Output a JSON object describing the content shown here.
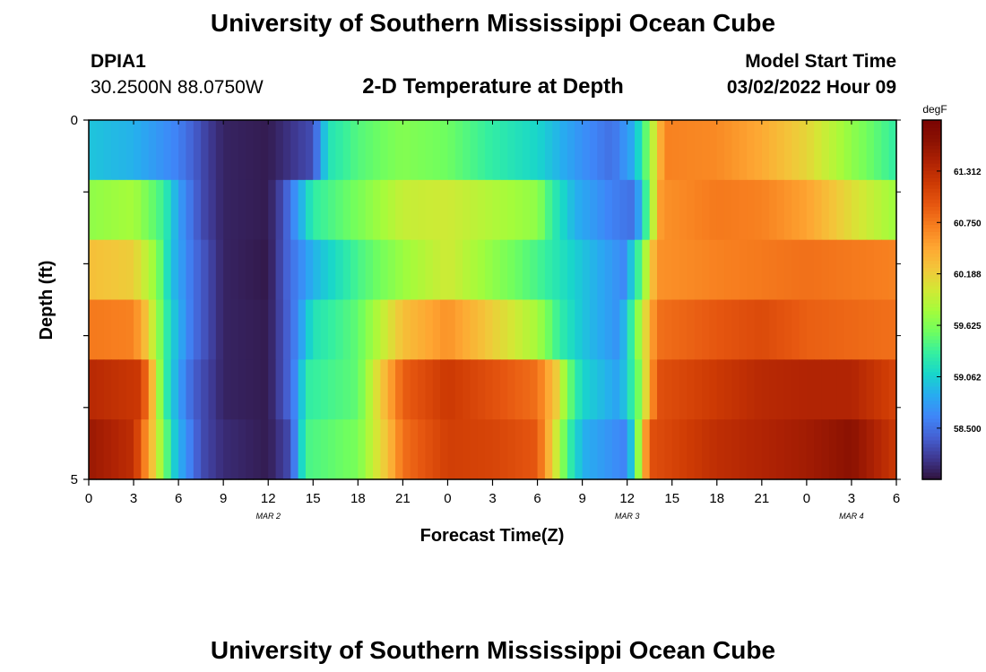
{
  "page": {
    "title": "University of Southern Mississippi Ocean Cube",
    "bottom_title": "University of Southern Mississippi Ocean Cube"
  },
  "station": {
    "id": "DPIA1",
    "coords": "30.2500N  88.0750W"
  },
  "model": {
    "label": "Model Start Time",
    "time": "03/02/2022 Hour 09"
  },
  "chart_data": {
    "type": "heatmap",
    "title": "2-D Temperature at Depth",
    "xlabel": "Forecast Time(Z)",
    "ylabel": "Depth (ft)",
    "x_tick_labels": [
      "0",
      "3",
      "6",
      "9",
      "12",
      "15",
      "18",
      "21",
      "0",
      "3",
      "6",
      "9",
      "12",
      "15",
      "18",
      "21",
      "0",
      "3",
      "6"
    ],
    "x_tick_hours": [
      0,
      3,
      6,
      9,
      12,
      15,
      18,
      21,
      24,
      27,
      30,
      33,
      36,
      39,
      42,
      45,
      48,
      51,
      54
    ],
    "x_range_hours": [
      0,
      54
    ],
    "date_labels": [
      {
        "text": "MAR 2",
        "hour": 12
      },
      {
        "text": "MAR 3",
        "hour": 36
      },
      {
        "text": "MAR 4",
        "hour": 51
      }
    ],
    "y_tick_labels": [
      "0",
      "5"
    ],
    "y_range": [
      0,
      5
    ],
    "depth_layers": [
      0,
      1,
      2,
      3,
      4,
      5
    ],
    "colorbar": {
      "unit": "degF",
      "ticks": [
        "61.312",
        "60.750",
        "60.188",
        "59.625",
        "59.062",
        "58.500"
      ],
      "tick_values": [
        61.312,
        60.75,
        60.188,
        59.625,
        59.062,
        58.5
      ],
      "min": 57.94,
      "max": 61.87,
      "colors": [
        "#30123b",
        "#3e378f",
        "#4560d2",
        "#3f86f8",
        "#28abf0",
        "#18d6cb",
        "#35efa0",
        "#6ffe5f",
        "#a4fc3b",
        "#d3e835",
        "#f3c63a",
        "#fea632",
        "#f77f1f",
        "#e65710",
        "#ce3b04",
        "#b02304",
        "#8c1202",
        "#7a0403"
      ]
    },
    "columns_per_hour": 2,
    "layer_keypoints": [
      [
        [
          0,
          59.0
        ],
        [
          3,
          58.9
        ],
        [
          6,
          58.6
        ],
        [
          8,
          58.2
        ],
        [
          9,
          58.05
        ],
        [
          12,
          58.0
        ],
        [
          15,
          58.3
        ],
        [
          16,
          59.2
        ],
        [
          18,
          59.45
        ],
        [
          21,
          59.65
        ],
        [
          24,
          59.55
        ],
        [
          27,
          59.3
        ],
        [
          30,
          59.1
        ],
        [
          33,
          58.7
        ],
        [
          35,
          58.5
        ],
        [
          36.5,
          58.9
        ],
        [
          37.5,
          59.7
        ],
        [
          38.5,
          60.7
        ],
        [
          42,
          60.65
        ],
        [
          45,
          60.45
        ],
        [
          48,
          60.15
        ],
        [
          51,
          59.7
        ],
        [
          54,
          59.3
        ]
      ],
      [
        [
          0,
          59.7
        ],
        [
          3,
          59.8
        ],
        [
          5,
          59.35
        ],
        [
          6,
          58.8
        ],
        [
          7.5,
          58.3
        ],
        [
          9,
          58.05
        ],
        [
          12,
          58.0
        ],
        [
          13,
          58.3
        ],
        [
          15,
          59.3
        ],
        [
          18,
          59.6
        ],
        [
          21,
          59.95
        ],
        [
          24,
          60.0
        ],
        [
          27,
          59.85
        ],
        [
          30,
          59.7
        ],
        [
          31,
          59.3
        ],
        [
          32.5,
          58.9
        ],
        [
          35,
          58.6
        ],
        [
          36.5,
          58.5
        ],
        [
          37.3,
          59.4
        ],
        [
          38.3,
          60.6
        ],
        [
          42,
          60.75
        ],
        [
          45,
          60.7
        ],
        [
          48,
          60.5
        ],
        [
          51,
          60.1
        ],
        [
          54,
          59.75
        ]
      ],
      [
        [
          0,
          60.3
        ],
        [
          3,
          60.2
        ],
        [
          4.5,
          59.7
        ],
        [
          5.5,
          59.0
        ],
        [
          7,
          58.5
        ],
        [
          9,
          58.05
        ],
        [
          12,
          57.98
        ],
        [
          13.2,
          58.4
        ],
        [
          15,
          58.9
        ],
        [
          18,
          59.4
        ],
        [
          21,
          59.75
        ],
        [
          24,
          60.0
        ],
        [
          27,
          59.7
        ],
        [
          30,
          59.4
        ],
        [
          33,
          59.0
        ],
        [
          35.8,
          58.65
        ],
        [
          36.8,
          59.4
        ],
        [
          38,
          60.6
        ],
        [
          42,
          60.7
        ],
        [
          45,
          60.75
        ],
        [
          48,
          60.8
        ],
        [
          51,
          60.75
        ],
        [
          54,
          60.7
        ]
      ],
      [
        [
          0,
          60.75
        ],
        [
          3,
          60.7
        ],
        [
          3.8,
          60.3
        ],
        [
          4.5,
          59.8
        ],
        [
          5.5,
          59.1
        ],
        [
          7,
          58.5
        ],
        [
          9,
          58.05
        ],
        [
          12,
          58.0
        ],
        [
          13.6,
          58.5
        ],
        [
          15,
          59.2
        ],
        [
          18,
          59.5
        ],
        [
          21,
          60.3
        ],
        [
          24,
          60.6
        ],
        [
          27,
          60.2
        ],
        [
          30,
          59.8
        ],
        [
          31.5,
          59.3
        ],
        [
          33,
          59.0
        ],
        [
          35.5,
          58.7
        ],
        [
          36.5,
          59.5
        ],
        [
          38,
          60.8
        ],
        [
          42,
          60.95
        ],
        [
          45,
          61.05
        ],
        [
          48,
          60.9
        ],
        [
          51,
          60.85
        ],
        [
          54,
          60.8
        ]
      ],
      [
        [
          0,
          61.35
        ],
        [
          3.5,
          61.2
        ],
        [
          4.2,
          60.4
        ],
        [
          5,
          59.4
        ],
        [
          6,
          58.8
        ],
        [
          7,
          58.4
        ],
        [
          9,
          58.05
        ],
        [
          12,
          58.0
        ],
        [
          13.6,
          58.5
        ],
        [
          14.6,
          59.3
        ],
        [
          18,
          59.5
        ],
        [
          19.5,
          60.2
        ],
        [
          21,
          60.9
        ],
        [
          24,
          61.2
        ],
        [
          27,
          61.0
        ],
        [
          30,
          60.8
        ],
        [
          31.3,
          60.2
        ],
        [
          32,
          59.6
        ],
        [
          33,
          59.1
        ],
        [
          35.5,
          58.8
        ],
        [
          36.8,
          59.6
        ],
        [
          38,
          61.0
        ],
        [
          42,
          61.2
        ],
        [
          45,
          61.35
        ],
        [
          48,
          61.4
        ],
        [
          51,
          61.4
        ],
        [
          54,
          61.1
        ]
      ],
      [
        [
          0,
          61.55
        ],
        [
          3,
          61.3
        ],
        [
          4,
          60.5
        ],
        [
          4.8,
          59.8
        ],
        [
          5.8,
          59.0
        ],
        [
          7.5,
          58.3
        ],
        [
          9,
          58.1
        ],
        [
          12,
          58.0
        ],
        [
          13.5,
          58.3
        ],
        [
          14.5,
          59.4
        ],
        [
          18,
          59.6
        ],
        [
          20,
          60.3
        ],
        [
          21,
          60.8
        ],
        [
          24,
          61.15
        ],
        [
          27,
          61.1
        ],
        [
          30,
          60.95
        ],
        [
          31,
          60.2
        ],
        [
          32,
          59.4
        ],
        [
          33,
          58.9
        ],
        [
          36,
          58.6
        ],
        [
          36.8,
          59.8
        ],
        [
          37.5,
          61.0
        ],
        [
          42,
          61.3
        ],
        [
          45,
          61.4
        ],
        [
          48,
          61.5
        ],
        [
          51,
          61.65
        ],
        [
          54,
          61.2
        ]
      ]
    ]
  }
}
